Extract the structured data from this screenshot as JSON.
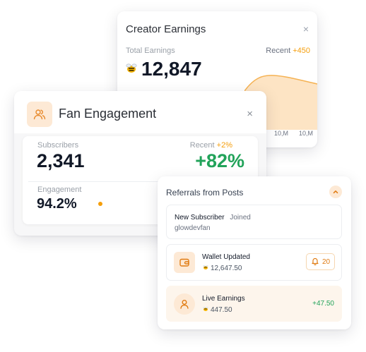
{
  "earnings_card": {
    "title": "Creator Earnings",
    "close": "×",
    "total_label": "Total Earnings",
    "recent_label": "Recent",
    "recent_delta": "+450",
    "amount": "12,847",
    "x_ticks": [
      "10,M",
      "10,M"
    ]
  },
  "engagement_card": {
    "title": "Fan Engagement",
    "close": "×",
    "subscribers_label": "Subscribers",
    "subscribers_value": "2,341",
    "recent_label": "Recent",
    "recent_delta": "+2%",
    "big_percent": "+82%",
    "engagement_label": "Engagement",
    "engagement_value": "94.2%"
  },
  "referrals_card": {
    "title": "Referrals from Posts",
    "items": [
      {
        "title": "New Subscriber",
        "status": "Joined",
        "user": "glowdevfan"
      },
      {
        "title": "Wallet Updated",
        "amount": "12,647.50",
        "notify_count": "20"
      },
      {
        "title": "Live Earnings",
        "amount": "447.50",
        "delta": "+47.50"
      }
    ]
  },
  "colors": {
    "accent": "#f59e0b",
    "accent_soft": "#fde9d5",
    "positive": "#22a35a",
    "text_dark": "#111827"
  },
  "icons": [
    "bee-coin-icon",
    "users-icon",
    "close-icon",
    "chevron-up-icon",
    "wallet-icon",
    "bell-icon",
    "user-icon"
  ]
}
